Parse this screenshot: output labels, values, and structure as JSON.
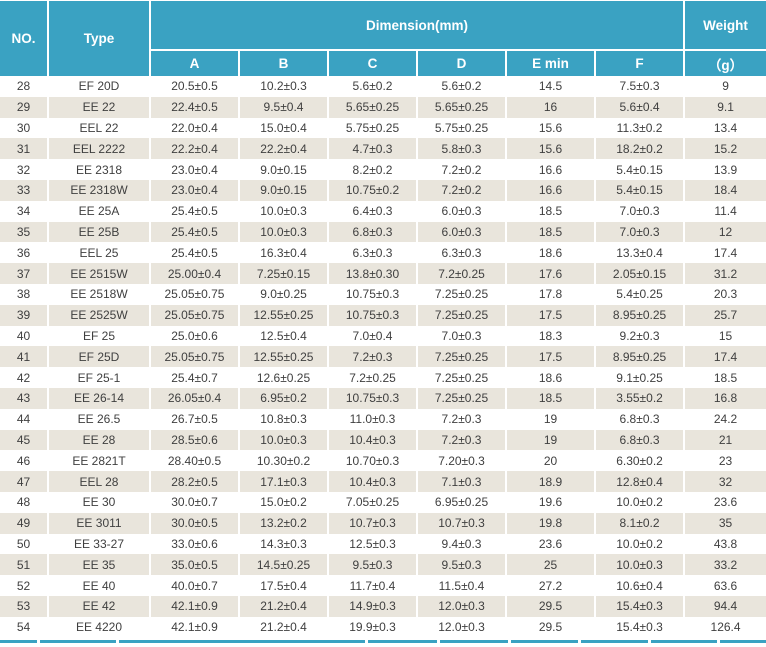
{
  "colors": {
    "header_teal": "#3AA2C2",
    "row_alt_beige": "#E9E5DC",
    "text_dark": "#3F3F3F"
  },
  "table": {
    "header": {
      "no": "NO.",
      "type": "Type",
      "dimension": "Dimension(mm)",
      "weight": "Weight",
      "weight_unit": "（g）",
      "sub_columns": [
        "A",
        "B",
        "C",
        "D",
        "E min",
        "F"
      ]
    },
    "rows": [
      [
        "28",
        "EF 20D",
        "20.5±0.5",
        "10.2±0.3",
        "5.6±0.2",
        "5.6±0.2",
        "14.5",
        "7.5±0.3",
        "9"
      ],
      [
        "29",
        "EE 22",
        "22.4±0.5",
        "9.5±0.4",
        "5.65±0.25",
        "5.65±0.25",
        "16",
        "5.6±0.4",
        "9.1"
      ],
      [
        "30",
        "EEL 22",
        "22.0±0.4",
        "15.0±0.4",
        "5.75±0.25",
        "5.75±0.25",
        "15.6",
        "11.3±0.2",
        "13.4"
      ],
      [
        "31",
        "EEL 2222",
        "22.2±0.4",
        "22.2±0.4",
        "4.7±0.3",
        "5.8±0.3",
        "15.6",
        "18.2±0.2",
        "15.2"
      ],
      [
        "32",
        "EE 2318",
        "23.0±0.4",
        "9.0±0.15",
        "8.2±0.2",
        "7.2±0.2",
        "16.6",
        "5.4±0.15",
        "13.9"
      ],
      [
        "33",
        "EE 2318W",
        "23.0±0.4",
        "9.0±0.15",
        "10.75±0.2",
        "7.2±0.2",
        "16.6",
        "5.4±0.15",
        "18.4"
      ],
      [
        "34",
        "EE 25A",
        "25.4±0.5",
        "10.0±0.3",
        "6.4±0.3",
        "6.0±0.3",
        "18.5",
        "7.0±0.3",
        "11.4"
      ],
      [
        "35",
        "EE 25B",
        "25.4±0.5",
        "10.0±0.3",
        "6.8±0.3",
        "6.0±0.3",
        "18.5",
        "7.0±0.3",
        "12"
      ],
      [
        "36",
        "EEL 25",
        "25.4±0.5",
        "16.3±0.4",
        "6.3±0.3",
        "6.3±0.3",
        "18.6",
        "13.3±0.4",
        "17.4"
      ],
      [
        "37",
        "EE 2515W",
        "25.00±0.4",
        "7.25±0.15",
        "13.8±0.30",
        "7.2±0.25",
        "17.6",
        "2.05±0.15",
        "31.2"
      ],
      [
        "38",
        "EE 2518W",
        "25.05±0.75",
        "9.0±0.25",
        "10.75±0.3",
        "7.25±0.25",
        "17.8",
        "5.4±0.25",
        "20.3"
      ],
      [
        "39",
        "EE 2525W",
        "25.05±0.75",
        "12.55±0.25",
        "10.75±0.3",
        "7.25±0.25",
        "17.5",
        "8.95±0.25",
        "25.7"
      ],
      [
        "40",
        "EF 25",
        "25.0±0.6",
        "12.5±0.4",
        "7.0±0.4",
        "7.0±0.3",
        "18.3",
        "9.2±0.3",
        "15"
      ],
      [
        "41",
        "EF 25D",
        "25.05±0.75",
        "12.55±0.25",
        "7.2±0.3",
        "7.25±0.25",
        "17.5",
        "8.95±0.25",
        "17.4"
      ],
      [
        "42",
        "EF 25-1",
        "25.4±0.7",
        "12.6±0.25",
        "7.2±0.25",
        "7.25±0.25",
        "18.6",
        "9.1±0.25",
        "18.5"
      ],
      [
        "43",
        "EE 26-14",
        "26.05±0.4",
        "6.95±0.2",
        "10.75±0.3",
        "7.25±0.25",
        "18.5",
        "3.55±0.2",
        "16.8"
      ],
      [
        "44",
        "EE 26.5",
        "26.7±0.5",
        "10.8±0.3",
        "11.0±0.3",
        "7.2±0.3",
        "19",
        "6.8±0.3",
        "24.2"
      ],
      [
        "45",
        "EE 28",
        "28.5±0.6",
        "10.0±0.3",
        "10.4±0.3",
        "7.2±0.3",
        "19",
        "6.8±0.3",
        "21"
      ],
      [
        "46",
        "EE 2821T",
        "28.40±0.5",
        "10.30±0.2",
        "10.70±0.3",
        "7.20±0.3",
        "20",
        "6.30±0.2",
        "23"
      ],
      [
        "47",
        "EEL 28",
        "28.2±0.5",
        "17.1±0.3",
        "10.4±0.3",
        "7.1±0.3",
        "18.9",
        "12.8±0.4",
        "32"
      ],
      [
        "48",
        "EE 30",
        "30.0±0.7",
        "15.0±0.2",
        "7.05±0.25",
        "6.95±0.25",
        "19.6",
        "10.0±0.2",
        "23.6"
      ],
      [
        "49",
        "EE 3011",
        "30.0±0.5",
        "13.2±0.2",
        "10.7±0.3",
        "10.7±0.3",
        "19.8",
        "8.1±0.2",
        "35"
      ],
      [
        "50",
        "EE 33-27",
        "33.0±0.6",
        "14.3±0.3",
        "12.5±0.3",
        "9.4±0.3",
        "23.6",
        "10.0±0.2",
        "43.8"
      ],
      [
        "51",
        "EE 35",
        "35.0±0.5",
        "14.5±0.25",
        "9.5±0.3",
        "9.5±0.3",
        "25",
        "10.0±0.3",
        "33.2"
      ],
      [
        "52",
        "EE 40",
        "40.0±0.7",
        "17.5±0.4",
        "11.7±0.4",
        "11.5±0.4",
        "27.2",
        "10.6±0.4",
        "63.6"
      ],
      [
        "53",
        "EE 42",
        "42.1±0.9",
        "21.2±0.4",
        "14.9±0.3",
        "12.0±0.3",
        "29.5",
        "15.4±0.3",
        "94.4"
      ],
      [
        "54",
        "EE 4220",
        "42.1±0.9",
        "21.2±0.4",
        "19.9±0.3",
        "12.0±0.3",
        "29.5",
        "15.4±0.3",
        "126.4"
      ]
    ]
  }
}
